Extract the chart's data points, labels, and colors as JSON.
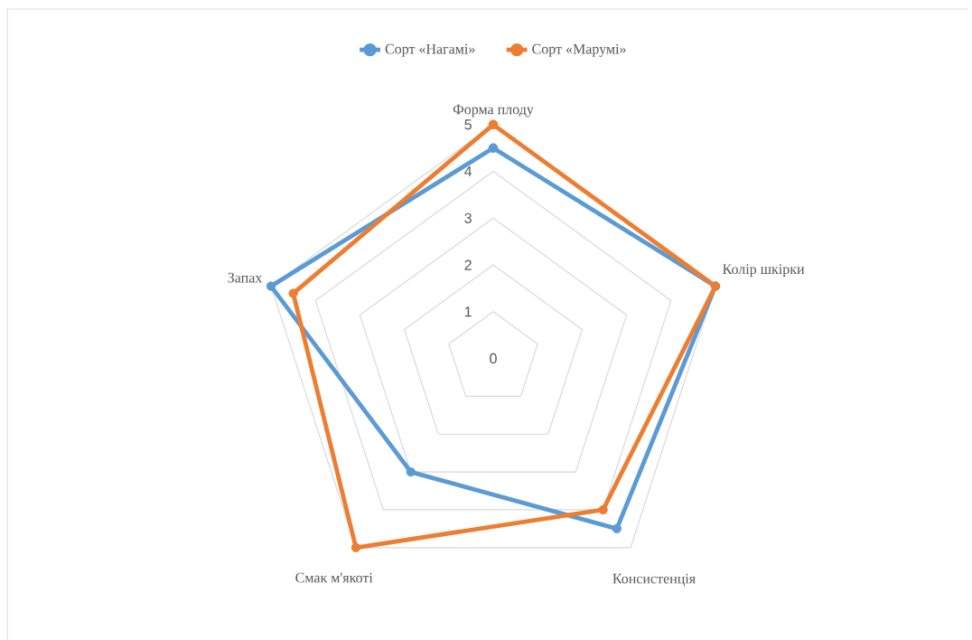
{
  "chart_data": {
    "type": "radar",
    "categories": [
      "Форма плоду",
      "Колір шкірки",
      "Консистенція",
      "Смак м'якоті",
      "Запах"
    ],
    "series": [
      {
        "name": "Сорт «Нагамі»",
        "color": "#5b9bd5",
        "values": [
          4.5,
          5,
          4.5,
          3,
          5
        ]
      },
      {
        "name": "Сорт «Марумі»",
        "color": "#ed7d31",
        "values": [
          5,
          5,
          4,
          5,
          4.5
        ]
      }
    ],
    "ylim": [
      0,
      5
    ],
    "yticks": [
      0,
      1,
      2,
      3,
      4,
      5
    ],
    "grid": true,
    "legend": "top",
    "marker": "circle",
    "line_style": "solid"
  }
}
